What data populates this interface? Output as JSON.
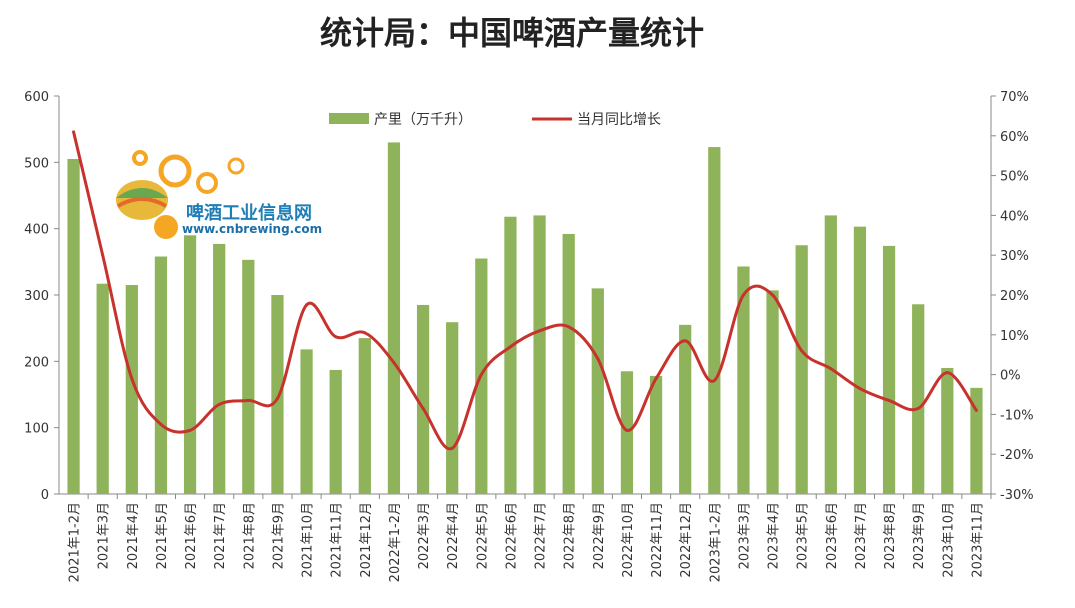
{
  "chart_data": {
    "type": "bar+line",
    "title": "统计局：中国啤酒产量统计",
    "categories": [
      "2021年1-2月",
      "2021年3月",
      "2021年4月",
      "2021年5月",
      "2021年6月",
      "2021年7月",
      "2021年8月",
      "2021年9月",
      "2021年10月",
      "2021年11月",
      "2021年12月",
      "2022年1-2月",
      "2022年3月",
      "2022年4月",
      "2022年5月",
      "2022年6月",
      "2022年7月",
      "2022年8月",
      "2022年9月",
      "2022年10月",
      "2022年11月",
      "2022年12月",
      "2023年1-2月",
      "2023年3月",
      "2023年4月",
      "2023年5月",
      "2023年6月",
      "2023年7月",
      "2023年8月",
      "2023年9月",
      "2023年10月",
      "2023年11月"
    ],
    "series": [
      {
        "name": "产里（万千升）",
        "type": "bar",
        "axis": "left",
        "color": "#8fb35a",
        "values": [
          505,
          317,
          315,
          358,
          390,
          377,
          353,
          300,
          218,
          187,
          235,
          530,
          285,
          259,
          355,
          418,
          420,
          392,
          310,
          185,
          178,
          255,
          523,
          343,
          307,
          375,
          420,
          403,
          374,
          286,
          190,
          160
        ]
      },
      {
        "name": "当月同比增长",
        "type": "line",
        "axis": "right",
        "color": "#c8322d",
        "values": [
          61,
          30,
          -1,
          -12.5,
          -14,
          -7.5,
          -6.5,
          -6,
          17.5,
          9.5,
          10.5,
          3,
          -8.5,
          -18.5,
          0,
          7,
          11,
          12,
          4,
          -14,
          -1,
          8.5,
          -1.5,
          20,
          20,
          6,
          1.5,
          -3.5,
          -6.5,
          -8.5,
          0.5,
          -9
        ]
      }
    ],
    "y_left": {
      "min": 0,
      "max": 600,
      "ticks": [
        "0",
        "100",
        "200",
        "300",
        "400",
        "500",
        "600"
      ]
    },
    "y_right": {
      "min": -30,
      "max": 70,
      "ticks": [
        "-30%",
        "-20%",
        "-10%",
        "0%",
        "10%",
        "20%",
        "30%",
        "40%",
        "50%",
        "60%",
        "70%"
      ]
    },
    "legend_position": "top-center",
    "grid": false
  },
  "watermark": {
    "cn": "啤酒工业信息网",
    "en": "www.cnbrewing.com"
  }
}
